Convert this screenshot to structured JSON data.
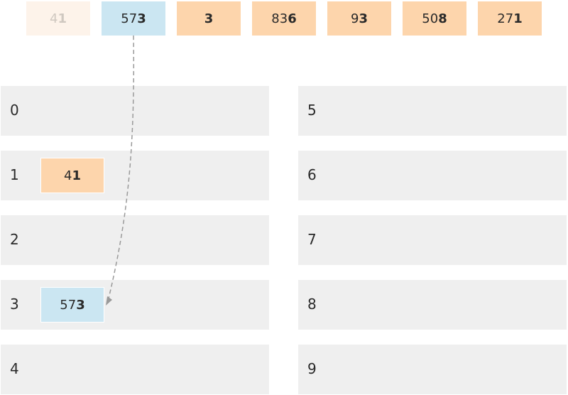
{
  "input_row": [
    {
      "prefix": "4",
      "digit": "1",
      "state": "faded"
    },
    {
      "prefix": "57",
      "digit": "3",
      "state": "active"
    },
    {
      "prefix": "",
      "digit": "3",
      "state": "pending"
    },
    {
      "prefix": "83",
      "digit": "6",
      "state": "pending"
    },
    {
      "prefix": "9",
      "digit": "3",
      "state": "pending"
    },
    {
      "prefix": "50",
      "digit": "8",
      "state": "pending"
    },
    {
      "prefix": "27",
      "digit": "1",
      "state": "pending"
    }
  ],
  "buckets": [
    {
      "label": "0",
      "items": []
    },
    {
      "label": "1",
      "items": [
        {
          "prefix": "4",
          "digit": "1",
          "state": "pending"
        }
      ]
    },
    {
      "label": "2",
      "items": []
    },
    {
      "label": "3",
      "items": [
        {
          "prefix": "57",
          "digit": "3",
          "state": "active"
        }
      ]
    },
    {
      "label": "4",
      "items": []
    },
    {
      "label": "5",
      "items": []
    },
    {
      "label": "6",
      "items": []
    },
    {
      "label": "7",
      "items": []
    },
    {
      "label": "8",
      "items": []
    },
    {
      "label": "9",
      "items": []
    }
  ],
  "colors": {
    "faded": "#fdf3ea",
    "active": "#cbe6f2",
    "pending": "#fdd5ac",
    "bucket": "#efefef",
    "arrow": "#9a9a9a"
  }
}
